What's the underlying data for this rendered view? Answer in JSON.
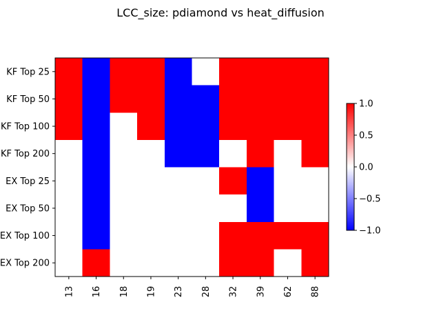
{
  "chart_data": {
    "type": "heatmap",
    "title": "LCC_size: pdiamond vs heat_diffusion",
    "x_categories": [
      "13",
      "16",
      "18",
      "19",
      "23",
      "28",
      "32",
      "39",
      "62",
      "88"
    ],
    "y_categories": [
      "KF Top 25",
      "KF Top 50",
      "KF Top 100",
      "KF Top 200",
      "EX Top 25",
      "EX Top 50",
      "EX Top 100",
      "EX Top 200"
    ],
    "values": [
      [
        1,
        -1,
        1,
        1,
        -1,
        0,
        1,
        1,
        1,
        1
      ],
      [
        1,
        -1,
        1,
        1,
        -1,
        -1,
        1,
        1,
        1,
        1
      ],
      [
        1,
        -1,
        0,
        1,
        -1,
        -1,
        1,
        1,
        1,
        1
      ],
      [
        0,
        -1,
        0,
        0,
        -1,
        -1,
        0,
        1,
        0,
        1
      ],
      [
        0,
        -1,
        0,
        0,
        0,
        0,
        1,
        -1,
        0,
        0
      ],
      [
        0,
        -1,
        0,
        0,
        0,
        0,
        0,
        -1,
        0,
        0
      ],
      [
        0,
        -1,
        0,
        0,
        0,
        0,
        1,
        1,
        1,
        1
      ],
      [
        0,
        1,
        0,
        0,
        0,
        0,
        1,
        1,
        0,
        1
      ]
    ],
    "colormap": "bwr",
    "vmin": -1.0,
    "vmax": 1.0,
    "colorbar_ticks": [
      "1.0",
      "0.5",
      "0.0",
      "−0.5",
      "−1.0"
    ],
    "colorbar_tick_values": [
      1.0,
      0.5,
      0.0,
      -0.5,
      -1.0
    ],
    "colors": {
      "low": "#0000ff",
      "mid": "#ffffff",
      "high": "#ff0000"
    }
  }
}
